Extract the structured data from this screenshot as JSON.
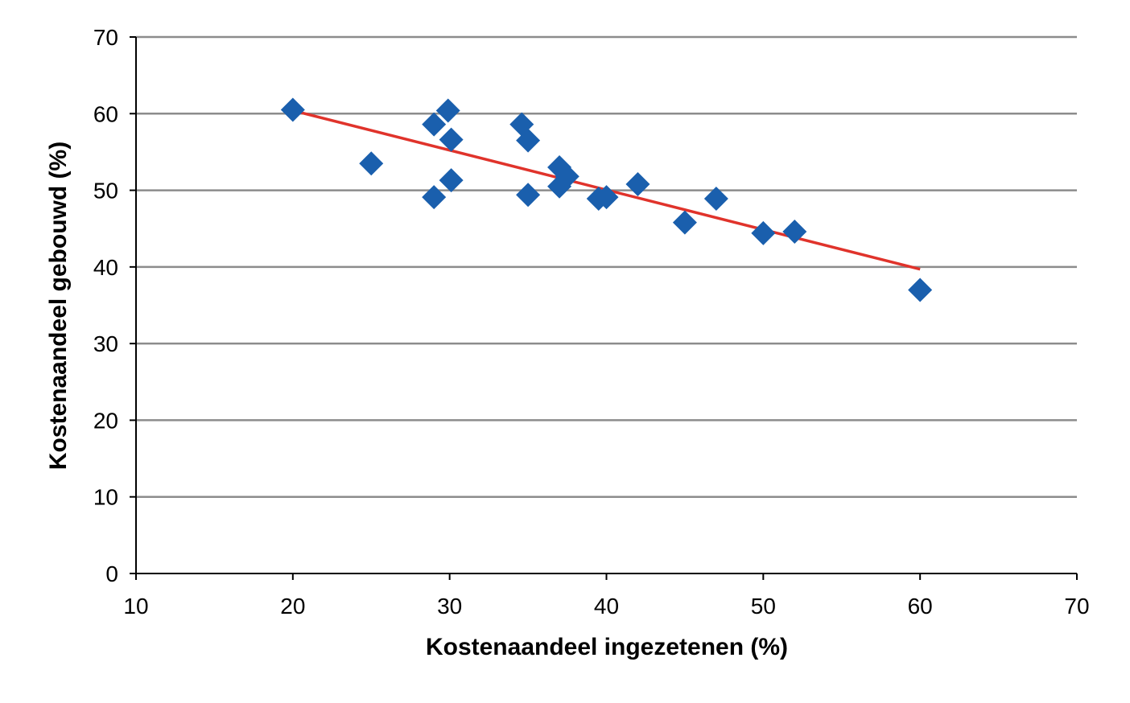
{
  "chart_data": {
    "type": "scatter",
    "xlabel": "Kostenaandeel ingezetenen (%)",
    "ylabel": "Kostenaandeel gebouwd (%)",
    "xlim": [
      10,
      70
    ],
    "ylim": [
      0,
      70
    ],
    "x_ticks": [
      10,
      20,
      30,
      40,
      50,
      60,
      70
    ],
    "y_ticks": [
      0,
      10,
      20,
      30,
      40,
      50,
      60,
      70
    ],
    "grid": "horizontal",
    "colors": {
      "points": "#1a5fad",
      "trendline": "#e0332b",
      "grid": "#8c8c8c",
      "axis": "#000000"
    },
    "series": [
      {
        "points": [
          {
            "x": 20,
            "y": 60.5
          },
          {
            "x": 25,
            "y": 53.5
          },
          {
            "x": 29,
            "y": 58.6
          },
          {
            "x": 29,
            "y": 49.1
          },
          {
            "x": 29.9,
            "y": 60.4
          },
          {
            "x": 30.1,
            "y": 56.6
          },
          {
            "x": 30.1,
            "y": 51.3
          },
          {
            "x": 34.6,
            "y": 58.6
          },
          {
            "x": 35,
            "y": 56.5
          },
          {
            "x": 35,
            "y": 49.4
          },
          {
            "x": 37,
            "y": 53
          },
          {
            "x": 37.5,
            "y": 51.8
          },
          {
            "x": 37,
            "y": 50.5
          },
          {
            "x": 39.5,
            "y": 48.9
          },
          {
            "x": 40,
            "y": 49.1
          },
          {
            "x": 42,
            "y": 50.8
          },
          {
            "x": 45,
            "y": 45.8
          },
          {
            "x": 47,
            "y": 48.9
          },
          {
            "x": 50,
            "y": 44.4
          },
          {
            "x": 52,
            "y": 44.6
          },
          {
            "x": 60,
            "y": 37
          }
        ]
      }
    ],
    "trendline": {
      "type": "linear",
      "from": {
        "x": 20,
        "y": 60.4
      },
      "to": {
        "x": 60,
        "y": 39.7
      }
    }
  }
}
